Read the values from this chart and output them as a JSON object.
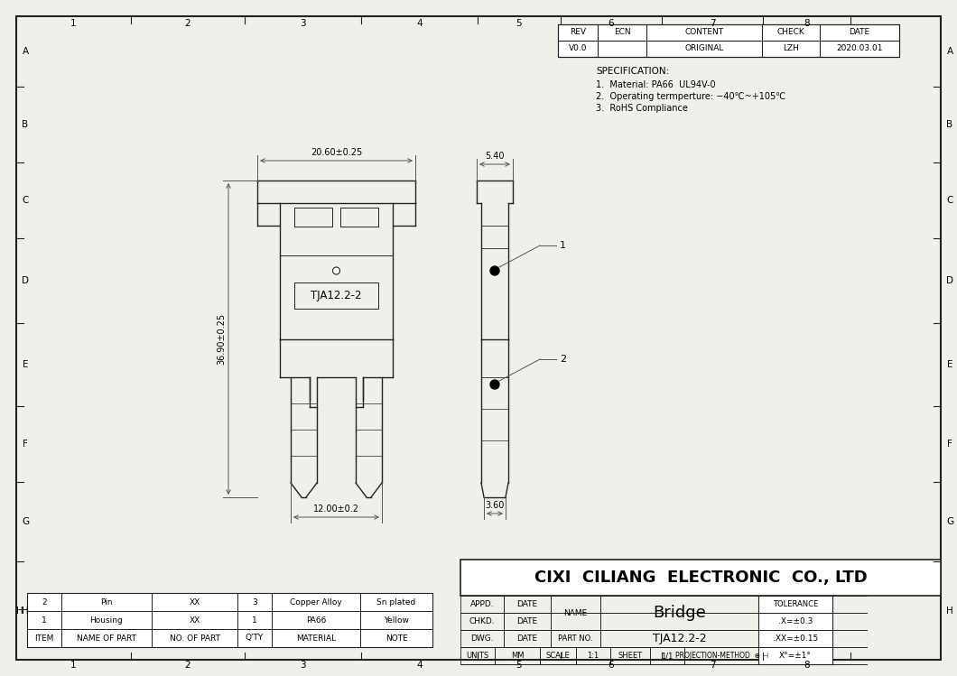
{
  "bg_color": "#f0f0eb",
  "line_color": "#222222",
  "title_company": "CIXI  CILIANG  ELECTRONIC  CO., LTD",
  "spec_title": "SPECIFICATION:",
  "spec_lines": [
    "1.  Material: PA66  UL94V-0",
    "2.  Operating termperture: −40℃~+105℃",
    "3.  RoHS Compliance"
  ],
  "rev_headers": [
    "REV",
    "ECN",
    "CONTENT",
    "CHECK",
    "DATE"
  ],
  "rev_row": [
    "V0.0",
    "",
    "ORIGINAL",
    "LZH",
    "2020.03.01"
  ],
  "bom_headers": [
    "ITEM",
    "NAME OF PART",
    "NO. OF PART",
    "Q'TY",
    "MATERIAL",
    "NOTE"
  ],
  "bom_rows": [
    [
      "2",
      "Pin",
      "XX",
      "3",
      "Copper Alloy",
      "Sn plated"
    ],
    [
      "1",
      "Housing",
      "XX",
      "1",
      "PA66",
      "Yellow"
    ]
  ],
  "tb_appd": "APPD.",
  "tb_chkd": "CHKD.",
  "tb_dwg": "DWG.",
  "tb_date": "DATE",
  "tb_name_label": "NAME",
  "tb_name_val": "Bridge",
  "tb_part_label": "PART NO.",
  "tb_part_val": "TJA12.2-2",
  "tb_units_label": "UNITS",
  "tb_units_val": "MM",
  "tb_scale_label": "SCALE",
  "tb_scale_val": "1:1",
  "tb_sheet_label": "SHEET",
  "tb_sheet_val": "1/1",
  "tb_proj_label": "PROJECTION-METHOD",
  "tb_tol_label": "TOLERANCE",
  "tb_tol_x": ".X=±0.3",
  "tb_tol_xx": ".XX=±0.15",
  "tb_tol_ang": "X°=±1°",
  "dim_width": "20.60±0.25",
  "dim_height": "36.90±0.25",
  "dim_bottom": "12.00±0.2",
  "dim_side_width": "5.40",
  "dim_side_bottom": "3.60"
}
